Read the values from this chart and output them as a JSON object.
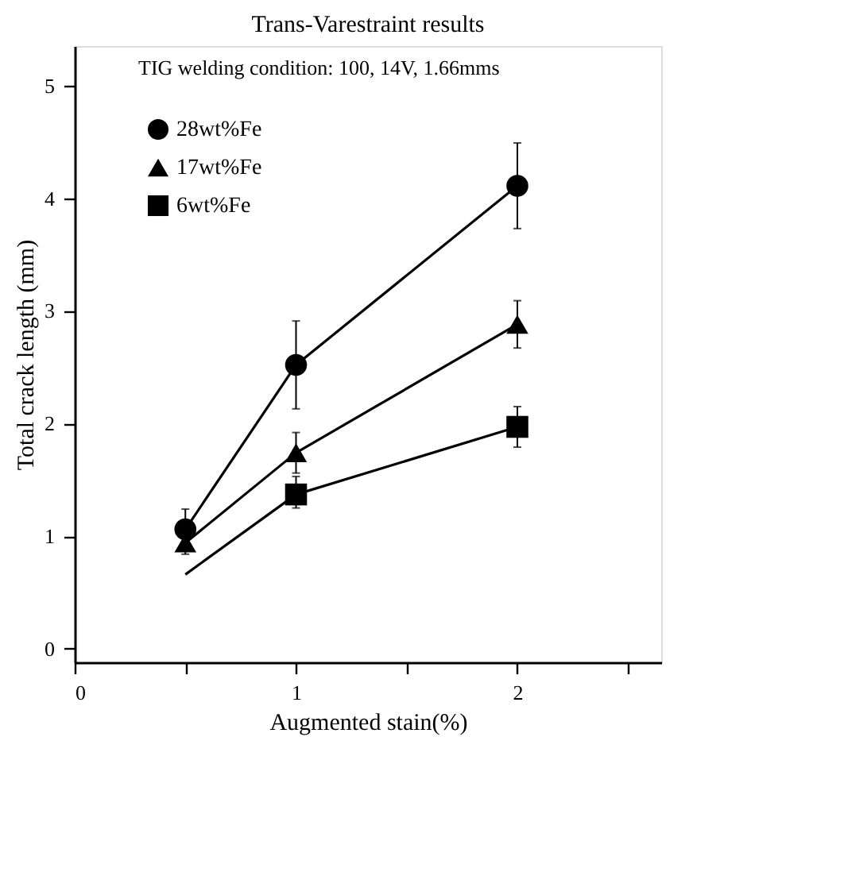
{
  "chart_data": {
    "type": "line",
    "title": "Trans-Varestraint results",
    "xlabel": "Augmented stain(%)",
    "ylabel": "Total crack length (mm)",
    "annotations": [
      "TIG welding condition: 100, 14V, 1.66mms"
    ],
    "series": [
      {
        "name": "28wt%Fe",
        "color": "#000000",
        "marker": "circle",
        "x": [
          0.5,
          1,
          2
        ],
        "values": [
          1.06,
          2.52,
          4.11
        ],
        "errors": [
          0.18,
          0.39,
          0.38
        ]
      },
      {
        "name": "17wt%Fe",
        "color": "#000000",
        "marker": "triangle",
        "x": [
          0.5,
          1,
          2
        ],
        "values": [
          0.94,
          1.74,
          2.88
        ],
        "errors": [
          0.1,
          0.18,
          0.21
        ]
      },
      {
        "name": "6wt%Fe",
        "color": "#000000",
        "marker": "square",
        "x": [
          1,
          2
        ],
        "values": [
          1.37,
          1.97
        ],
        "errors": [
          [
            1.25,
            1.53
          ],
          [
            1.79,
            2.15
          ]
        ]
      },
      {
        "type": "line",
        "color": "#000000",
        "marker": "none",
        "x": [
          0.5,
          1
        ],
        "values": [
          0.66,
          1.37
        ]
      }
    ],
    "xlim": [
      0,
      2.65
    ],
    "ylim": [
      -0.12,
      5.35
    ],
    "xticks": [
      0,
      {
        "value": 0.5,
        "label": null
      },
      1,
      {
        "value": 1.5,
        "label": null
      },
      2,
      {
        "value": 2.5,
        "label": null
      }
    ],
    "yticks": [
      0,
      1,
      2,
      3,
      4,
      5
    ],
    "grid": false,
    "legend": "top left",
    "line_style": "solid"
  }
}
